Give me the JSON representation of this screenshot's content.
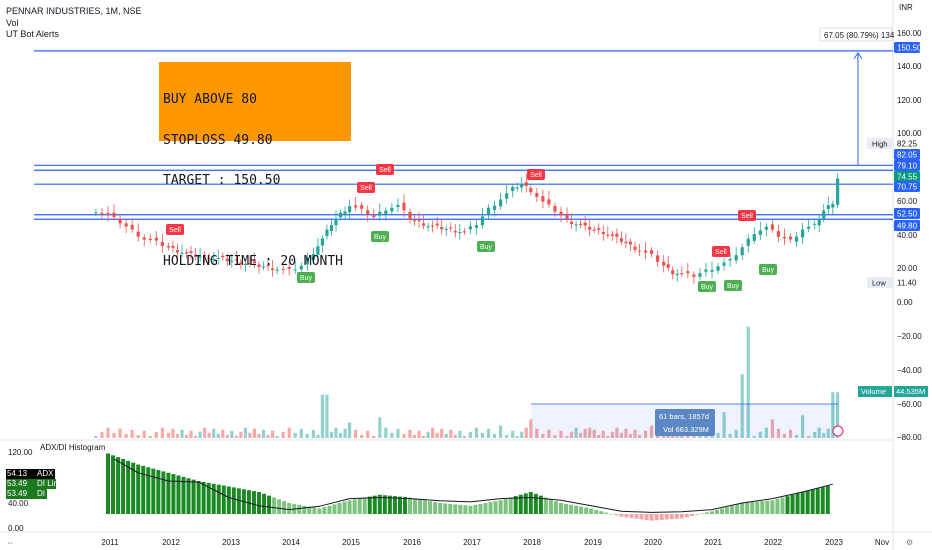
{
  "header": {
    "symbol_line": "PENNAR INDUSTRIES, 1M, NSE",
    "vol_label": "Vol",
    "indicator_label": "UT Bot Alerts"
  },
  "annotation": {
    "lines": [
      "BUY ABOVE 80",
      "STOPLOSS 49.80",
      "TARGET : 150.50",
      "",
      "HOLDING TIME : 20 MONTH"
    ],
    "bg": "#ff9800"
  },
  "currency_label": "INR",
  "measure": {
    "price_label": "67.05 (80.79%) 134",
    "bars_label": "61 bars, 1857d",
    "vol_label": "Vol 663.329M"
  },
  "price_axis_labels": [
    "160.00",
    "140.00",
    "120.00",
    "100.00",
    "60.00",
    "40.00",
    "20.00",
    "0.00",
    "−20.00",
    "−40.00",
    "−60.00",
    "−80.00"
  ],
  "price_tags": [
    {
      "label": "150.50",
      "color": "#2962ff",
      "kind": "line"
    },
    {
      "label": "High",
      "color": "#e9ecf2",
      "kind": "text"
    },
    {
      "label": "82.25",
      "color": "#ffffff",
      "kind": "text"
    },
    {
      "label": "82.05",
      "color": "#2962ff",
      "kind": "line"
    },
    {
      "label": "79.10",
      "color": "#2962ff",
      "kind": "line"
    },
    {
      "label": "74.55",
      "color": "#089981",
      "kind": "price"
    },
    {
      "label": "70.75",
      "color": "#2962ff",
      "kind": "line"
    },
    {
      "label": "52.50",
      "color": "#2962ff",
      "kind": "line"
    },
    {
      "label": "49.80",
      "color": "#2962ff",
      "kind": "line"
    },
    {
      "label": "Low",
      "color": "#e9ecf2",
      "kind": "text"
    },
    {
      "label": "11.40",
      "color": "#ffffff",
      "kind": "text"
    }
  ],
  "volume_tag": {
    "name": "Volume",
    "value": "44.535M",
    "color": "#26a69a"
  },
  "adx_panel": {
    "title": "ADX/DI Histogram",
    "axis_labels": [
      "120.00",
      "40.00",
      "0.00"
    ],
    "legend": [
      {
        "value": "54.13",
        "name": "ADX",
        "color": "#000000"
      },
      {
        "value": "53.49",
        "name": "DI Line",
        "color": "#1b7a1e"
      },
      {
        "value": "53.49",
        "name": "DI",
        "color": "#1b7a1e"
      }
    ]
  },
  "x_axis_labels": [
    "2011",
    "2012",
    "2013",
    "2014",
    "2015",
    "2016",
    "2017",
    "2018",
    "2019",
    "2020",
    "2021",
    "2022",
    "2023",
    "Nov"
  ],
  "signals": [
    {
      "type": "Sell",
      "date": "2011.8"
    },
    {
      "type": "Buy",
      "date": "2014.1"
    },
    {
      "type": "Sell",
      "date": "2015.3"
    },
    {
      "type": "Sell",
      "date": "2015.6"
    },
    {
      "type": "Buy",
      "date": "2015.5"
    },
    {
      "type": "Buy",
      "date": "2017.1"
    },
    {
      "type": "Sell",
      "date": "2018.0"
    },
    {
      "type": "Buy",
      "date": "2020.8"
    },
    {
      "type": "Buy",
      "date": "2021.4"
    },
    {
      "type": "Sell",
      "date": "2021.2"
    },
    {
      "type": "Sell",
      "date": "2021.7"
    },
    {
      "type": "Buy",
      "date": "2022.2"
    }
  ],
  "chart_data": {
    "type": "candlestick",
    "title": "PENNAR INDUSTRIES, 1M, NSE",
    "x_unit": "year",
    "xlim": [
      2010.1,
      2024.4
    ],
    "y_unit": "INR",
    "ylim": [
      -80,
      170
    ],
    "support_resistance_lines": [
      150.5,
      82.05,
      79.1,
      70.75,
      52.5,
      49.8
    ],
    "last_price": 74.55,
    "high": 82.25,
    "low": 11.4,
    "close_series": {
      "x": [
        2010.8,
        2011.0,
        2011.2,
        2011.4,
        2011.6,
        2011.8,
        2012.0,
        2012.3,
        2012.6,
        2012.9,
        2013.2,
        2013.5,
        2013.8,
        2014.0,
        2014.2,
        2014.4,
        2014.55,
        2014.7,
        2014.85,
        2015.0,
        2015.2,
        2015.4,
        2015.6,
        2015.8,
        2016.0,
        2016.3,
        2016.6,
        2016.9,
        2017.1,
        2017.3,
        2017.5,
        2017.7,
        2017.85,
        2018.0,
        2018.2,
        2018.4,
        2018.6,
        2018.9,
        2019.2,
        2019.5,
        2019.8,
        2020.0,
        2020.2,
        2020.35,
        2020.5,
        2020.7,
        2020.9,
        2021.1,
        2021.3,
        2021.5,
        2021.7,
        2021.9,
        2022.1,
        2022.3,
        2022.5,
        2022.7,
        2022.85,
        2023.0,
        2023.08
      ],
      "y": [
        55,
        52,
        48,
        43,
        38,
        36,
        33,
        29,
        27,
        26,
        24,
        22,
        20,
        19,
        22,
        30,
        38,
        47,
        53,
        58,
        55,
        51,
        56,
        58,
        50,
        46,
        44,
        42,
        47,
        56,
        62,
        68,
        71,
        67,
        60,
        55,
        49,
        45,
        42,
        37,
        31,
        28,
        22,
        18,
        17,
        16,
        19,
        22,
        25,
        33,
        42,
        45,
        40,
        37,
        44,
        46,
        55,
        60,
        74.55
      ]
    },
    "volume_series": {
      "x": [
        2014.6,
        2015.0,
        2015.5,
        2017.5,
        2018.0,
        2019.0,
        2020.0,
        2021.2,
        2021.5,
        2021.6,
        2022.0,
        2022.5,
        2023.05
      ],
      "y": [
        42,
        15,
        20,
        12,
        18,
        10,
        12,
        25,
        62,
        108,
        18,
        22,
        44.535
      ],
      "unit": "M"
    },
    "adx_series": {
      "x": [
        2011.1,
        2011.5,
        2012.0,
        2012.5,
        2013.0,
        2013.5,
        2014.0,
        2014.5,
        2015.0,
        2015.5,
        2016.0,
        2016.5,
        2017.0,
        2017.5,
        2018.0,
        2018.5,
        2019.0,
        2019.5,
        2020.0,
        2020.5,
        2021.0,
        2021.5,
        2022.0,
        2022.5,
        2023.0
      ],
      "y": [
        100,
        75,
        60,
        58,
        30,
        15,
        8,
        14,
        28,
        30,
        28,
        24,
        22,
        28,
        30,
        25,
        15,
        5,
        3,
        4,
        8,
        20,
        28,
        40,
        54.13
      ]
    },
    "di_histogram": {
      "x": [
        2011.0,
        2011.5,
        2012.0,
        2012.5,
        2013.0,
        2013.5,
        2014.0,
        2014.5,
        2015.0,
        2015.5,
        2016.0,
        2016.5,
        2017.0,
        2017.5,
        2018.0,
        2018.5,
        2019.0,
        2019.5,
        2020.0,
        2020.5,
        2021.0,
        2021.5,
        2022.0,
        2022.5,
        2023.0
      ],
      "y": [
        110,
        90,
        75,
        60,
        50,
        40,
        20,
        10,
        25,
        35,
        30,
        20,
        15,
        25,
        40,
        20,
        10,
        -5,
        -12,
        -8,
        5,
        20,
        25,
        40,
        53.49
      ]
    }
  }
}
